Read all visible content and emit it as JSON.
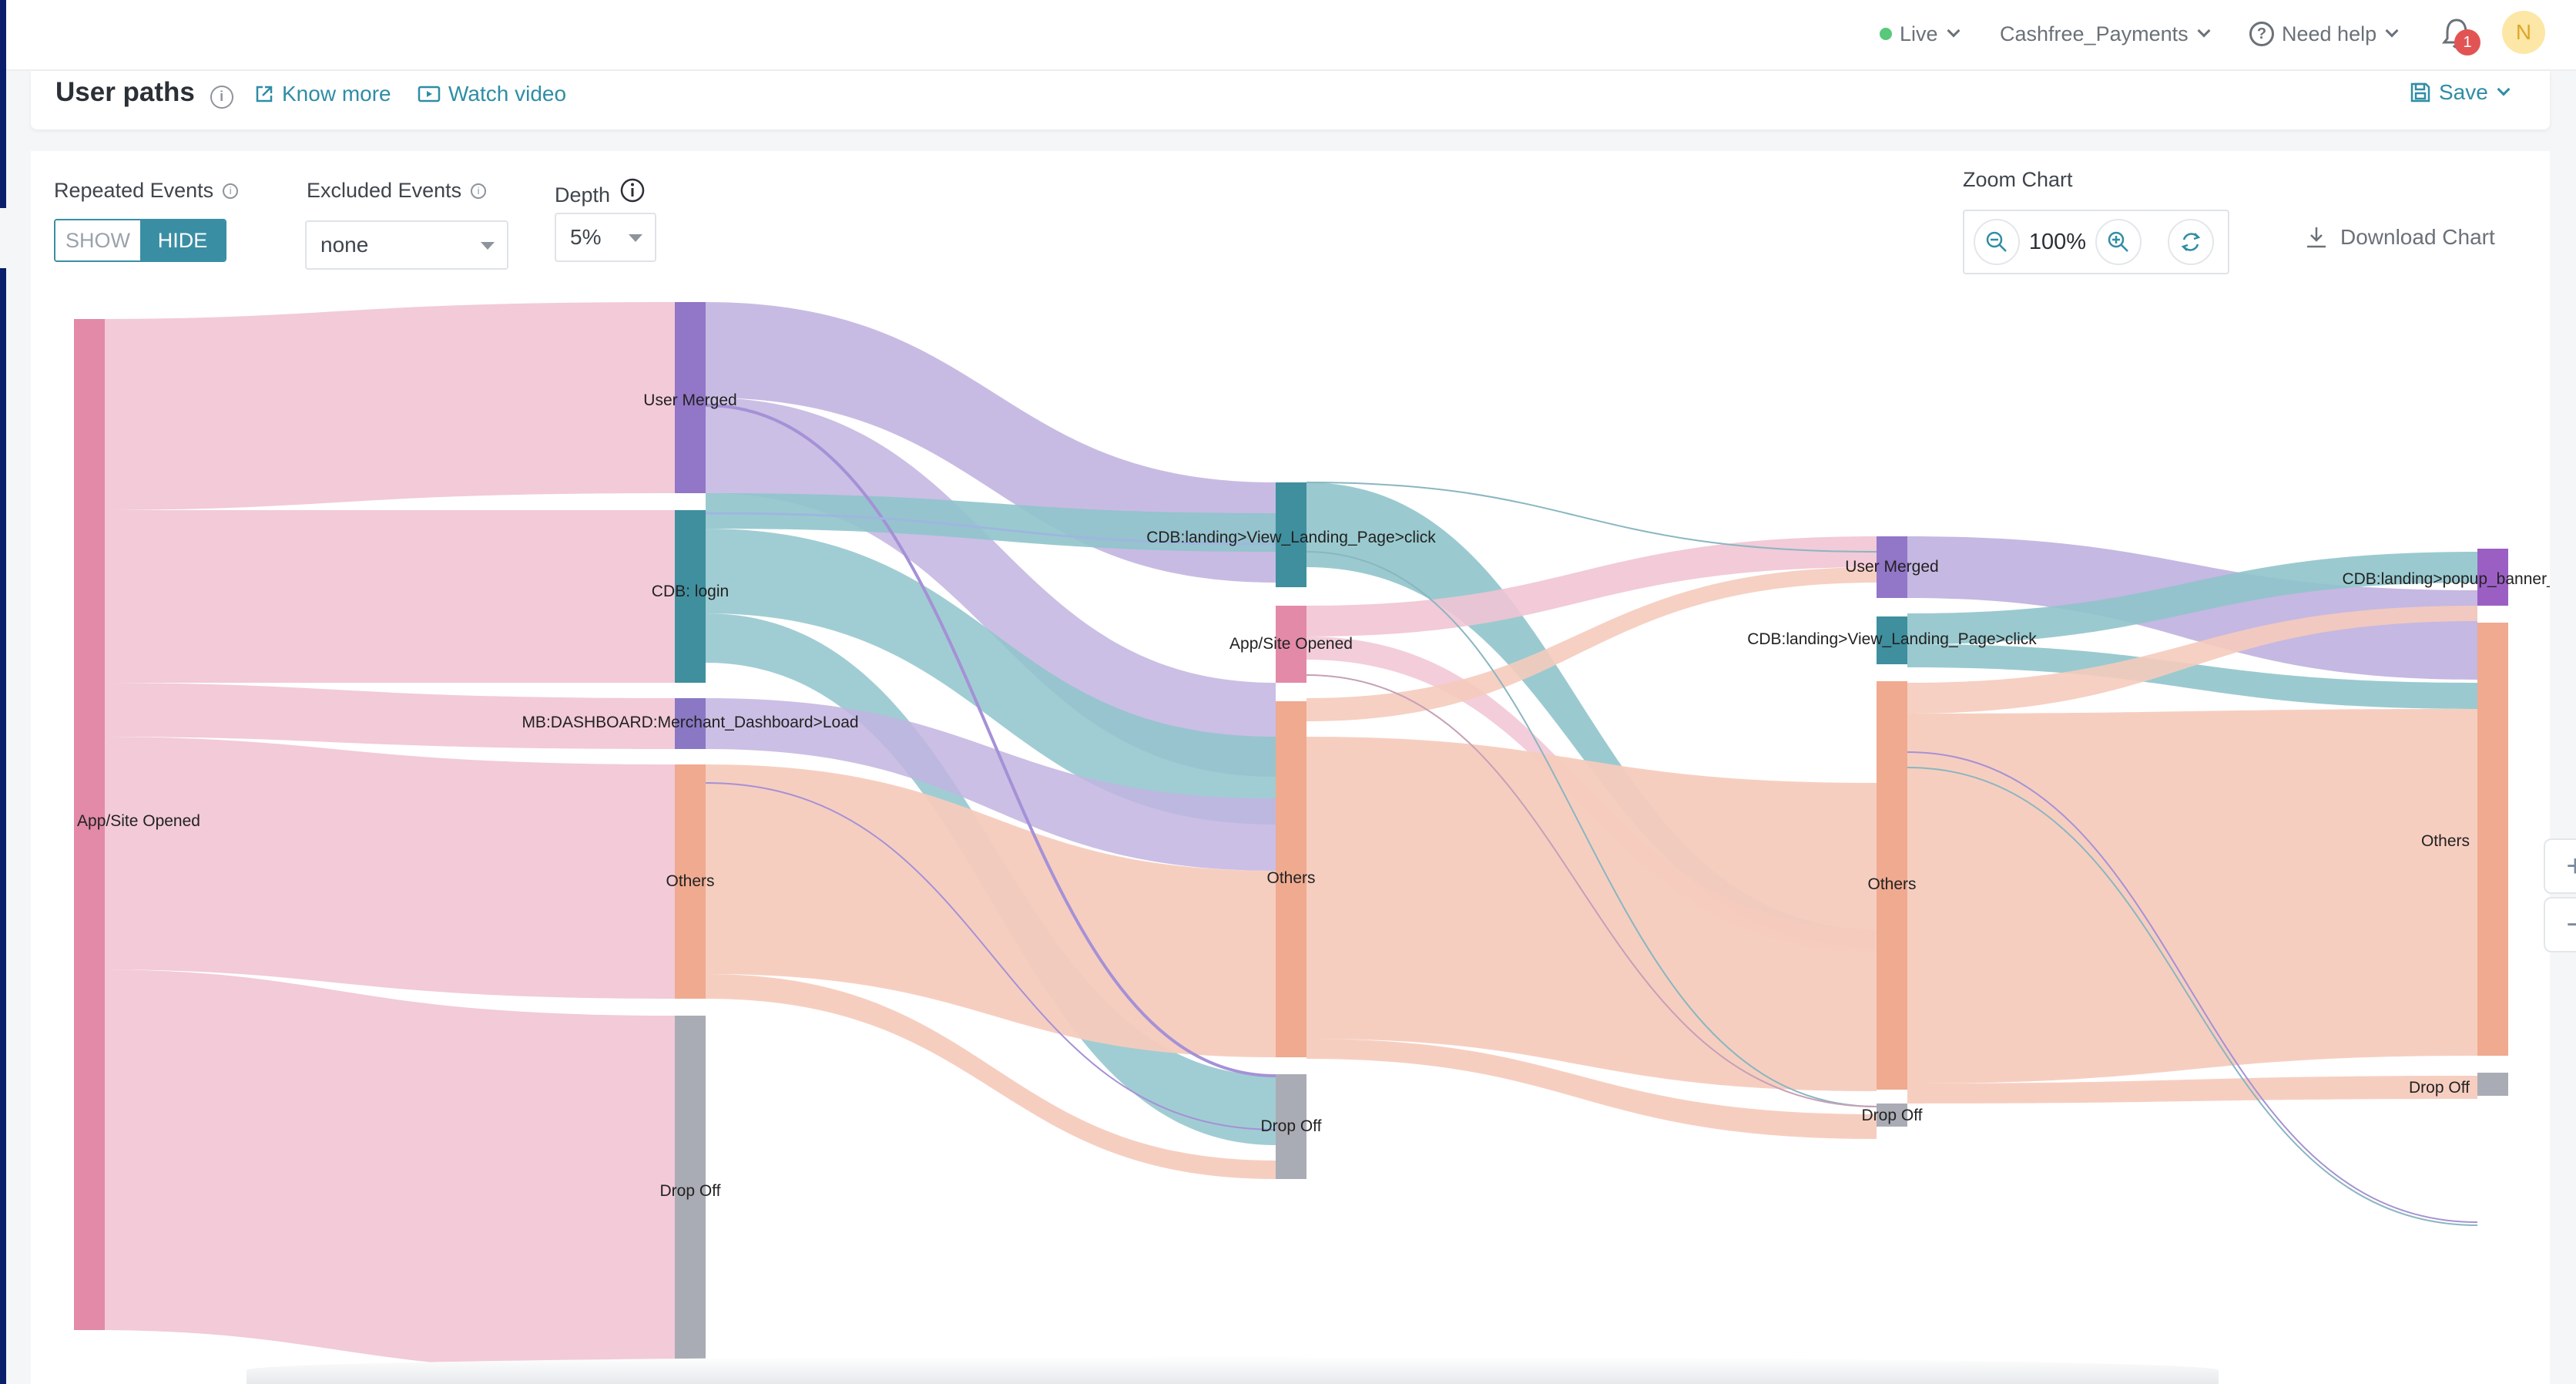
{
  "header": {
    "env": "Live",
    "workspace": "Cashfree_Payments",
    "help": "Need help",
    "notification_count": "1",
    "avatar_initial": "N"
  },
  "titlebar": {
    "title": "User paths",
    "know_more": "Know more",
    "watch_video": "Watch video",
    "save": "Save"
  },
  "controls": {
    "repeated_events_label": "Repeated Events",
    "show": "SHOW",
    "hide": "HIDE",
    "excluded_events_label": "Excluded Events",
    "excluded_value": "none",
    "depth_label": "Depth",
    "depth_value": "5%",
    "zoom_label": "Zoom Chart",
    "zoom_value": "100%",
    "download": "Download Chart"
  },
  "colors": {
    "app_site": "#e38aa8",
    "user_merged": "#9276c8",
    "login": "#3f8f9e",
    "others": "#efaa90",
    "drop_off": "#a9acb4",
    "teal_flow": "#8fc4cb",
    "pink_flow": "#f1c4d4",
    "purple_flow": "#c2b4e0",
    "orange_flow": "#f5cbbd"
  },
  "chart_data": {
    "type": "sankey",
    "columns": [
      [
        "App/Site Opened"
      ],
      [
        "User Merged",
        "CDB: login",
        "MB:DASHBOARD:Merchant_Dashboard>Load",
        "Others",
        "Drop Off"
      ],
      [
        "CDB:landing>View_Landing_Page>click",
        "App/Site Opened",
        "Others",
        "Drop Off"
      ],
      [
        "User Merged",
        "CDB:landing>View_Landing_Page>click",
        "Others",
        "Drop Off"
      ],
      [
        "CDB:landing>popup_banner_closed>click",
        "Others",
        "Drop Off"
      ]
    ],
    "nodes": [
      {
        "id": "a",
        "col": 0,
        "label": "App/Site Opened",
        "color": "#e38aa8"
      },
      {
        "id": "b1",
        "col": 1,
        "label": "User Merged",
        "color": "#9276c8"
      },
      {
        "id": "b2",
        "col": 1,
        "label": "CDB: login",
        "color": "#3f8f9e"
      },
      {
        "id": "b3",
        "col": 1,
        "label": "MB:DASHBOARD:Merchant_Dashboard>Load",
        "color": "#8a78c4"
      },
      {
        "id": "b4",
        "col": 1,
        "label": "Others",
        "color": "#efaa90"
      },
      {
        "id": "b5",
        "col": 1,
        "label": "Drop Off",
        "color": "#a9acb4"
      },
      {
        "id": "c1",
        "col": 2,
        "label": "CDB:landing>View_Landing_Page>click",
        "color": "#3f8f9e"
      },
      {
        "id": "c2",
        "col": 2,
        "label": "App/Site Opened",
        "color": "#e38aa8"
      },
      {
        "id": "c3",
        "col": 2,
        "label": "Others",
        "color": "#efaa90"
      },
      {
        "id": "c4",
        "col": 2,
        "label": "Drop Off",
        "color": "#a9acb4"
      },
      {
        "id": "d1",
        "col": 3,
        "label": "User Merged",
        "color": "#9276c8"
      },
      {
        "id": "d2",
        "col": 3,
        "label": "CDB:landing>View_Landing_Page>click",
        "color": "#3f8f9e"
      },
      {
        "id": "d3",
        "col": 3,
        "label": "Others",
        "color": "#efaa90"
      },
      {
        "id": "d4",
        "col": 3,
        "label": "Drop Off",
        "color": "#a9acb4"
      },
      {
        "id": "e1",
        "col": 4,
        "label": "CDB:landing>popup_banner_closed>click",
        "color": "#9b5fc4"
      },
      {
        "id": "e2",
        "col": 4,
        "label": "Others",
        "color": "#efaa90"
      },
      {
        "id": "e3",
        "col": 4,
        "label": "Drop Off",
        "color": "#a9acb4"
      }
    ]
  }
}
